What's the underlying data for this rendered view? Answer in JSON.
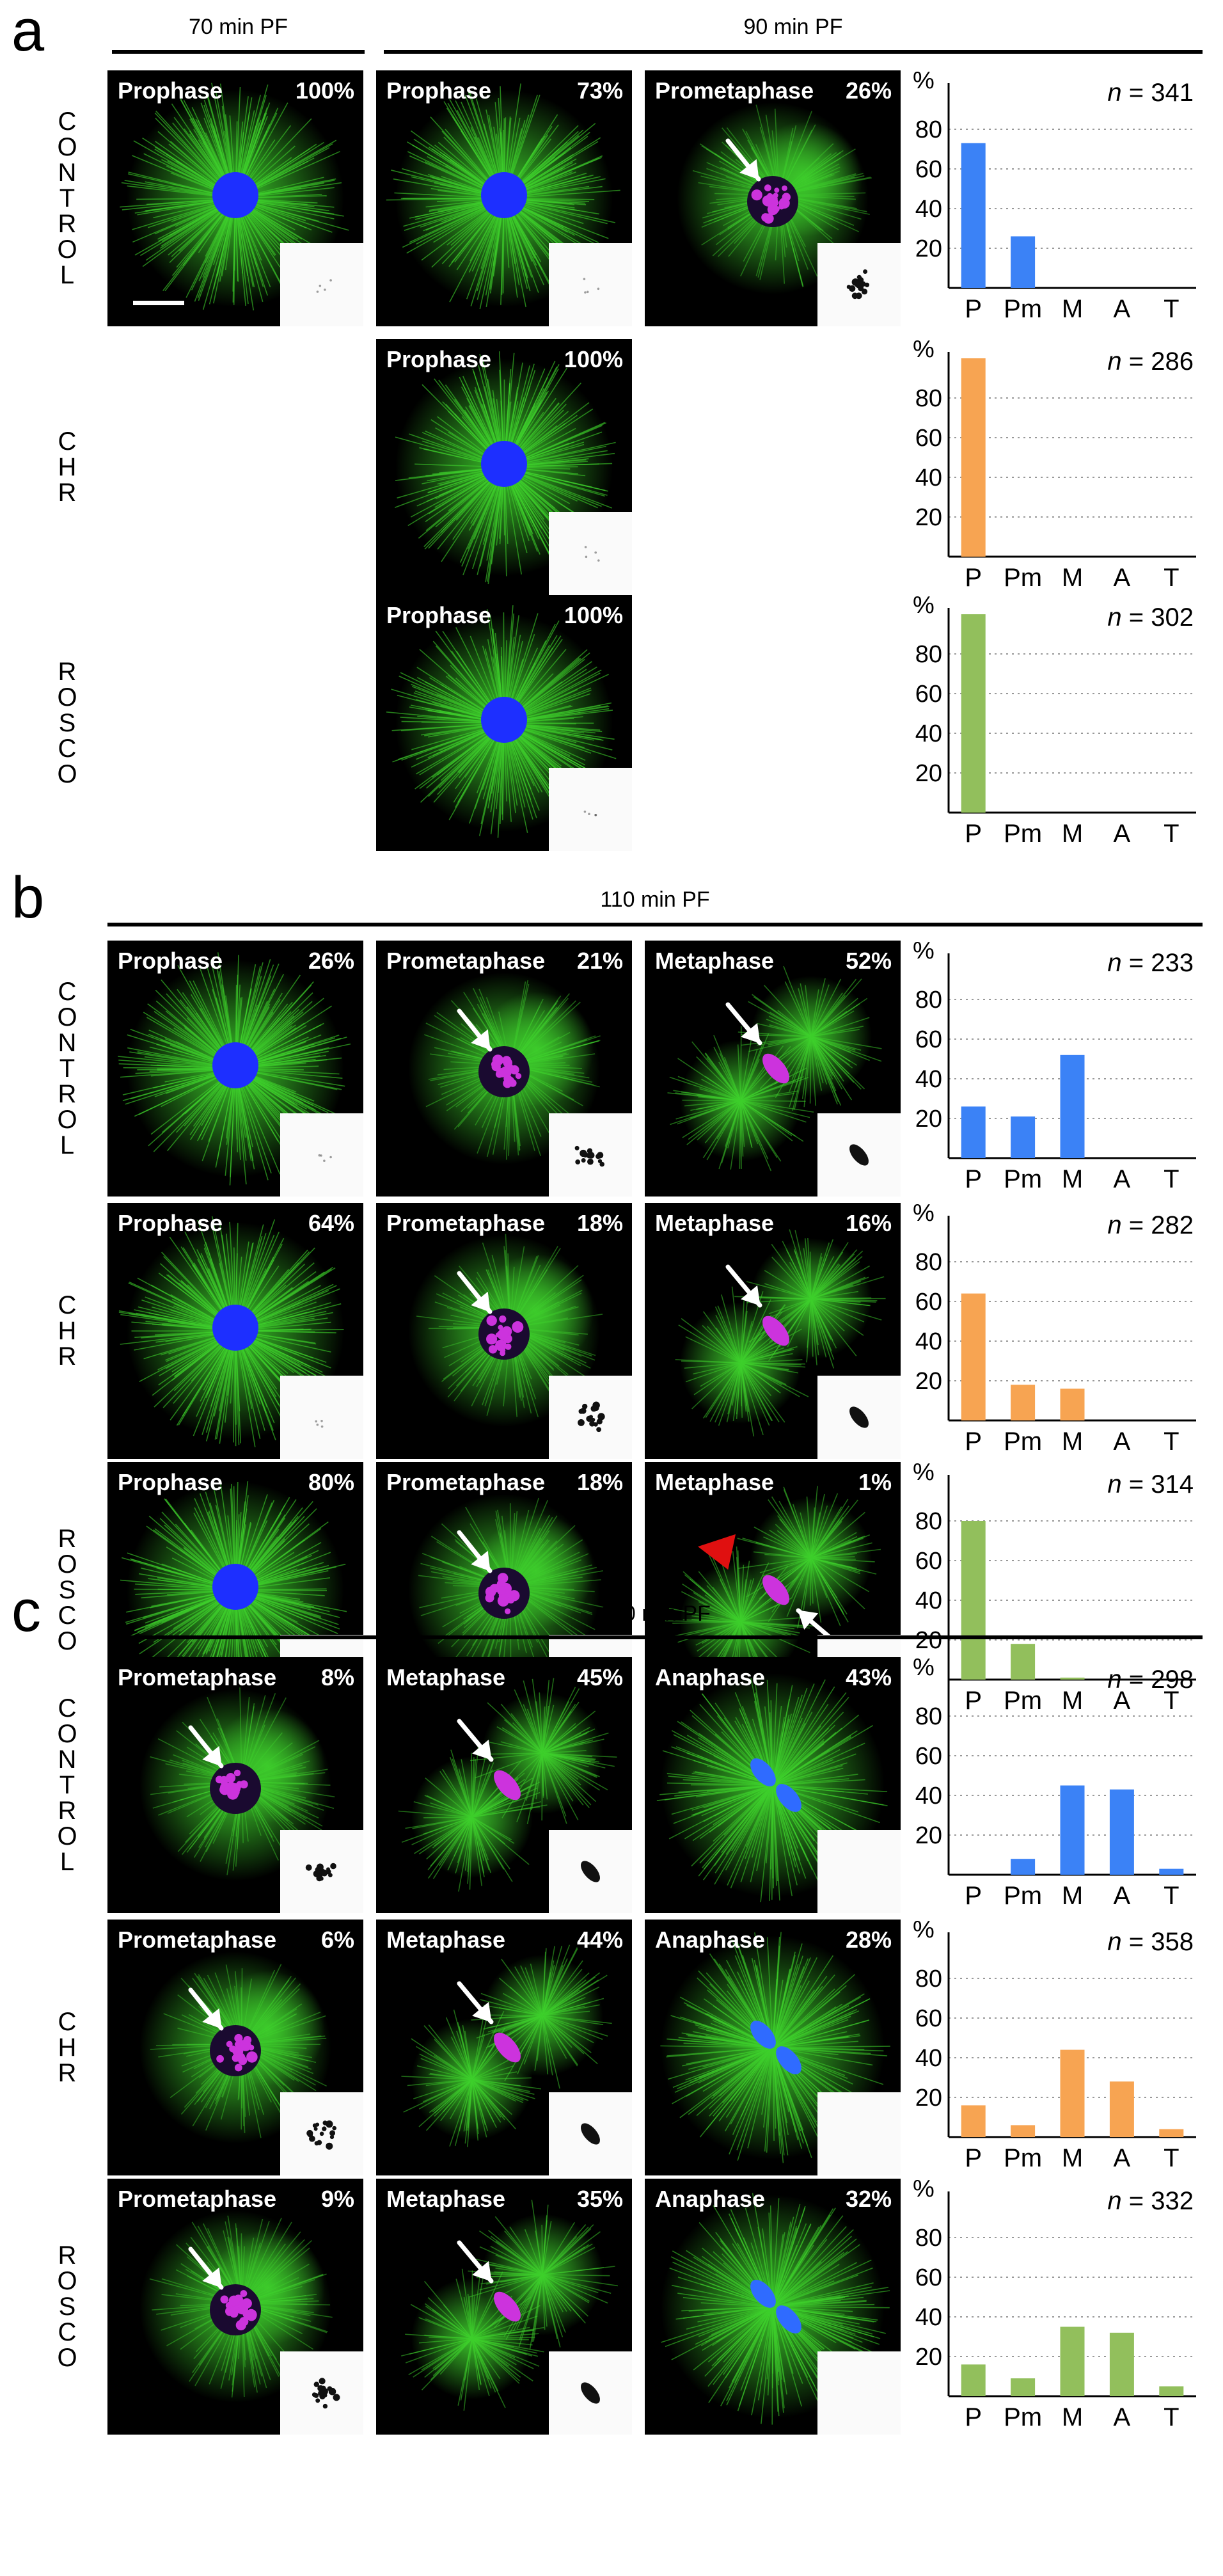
{
  "figure": {
    "panels": [
      {
        "letter": "a",
        "headers": [
          "70 min PF",
          "90 min PF"
        ],
        "rows": [
          {
            "label": "CONTROL",
            "tiles": [
              {
                "stage": "Prophase",
                "percent": "100%",
                "type": "prophase"
              },
              {
                "stage": "Prophase",
                "percent": "73%",
                "type": "prophase"
              },
              {
                "stage": "Prometaphase",
                "percent": "26%",
                "type": "prometa"
              }
            ],
            "chart_index": 0
          },
          {
            "label": "CHR",
            "tiles": [
              {
                "stage": "Prophase",
                "percent": "100%",
                "type": "prophase"
              }
            ],
            "chart_index": 1
          },
          {
            "label": "ROSCO",
            "tiles": [
              {
                "stage": "Prophase",
                "percent": "100%",
                "type": "prophase"
              }
            ],
            "chart_index": 2
          }
        ]
      },
      {
        "letter": "b",
        "headers": [
          "110 min PF"
        ],
        "rows": [
          {
            "label": "CONTROL",
            "tiles": [
              {
                "stage": "Prophase",
                "percent": "26%",
                "type": "prophase"
              },
              {
                "stage": "Prometaphase",
                "percent": "21%",
                "type": "prometa"
              },
              {
                "stage": "Metaphase",
                "percent": "52%",
                "type": "meta"
              }
            ],
            "chart_index": 3
          },
          {
            "label": "CHR",
            "tiles": [
              {
                "stage": "Prophase",
                "percent": "64%",
                "type": "prophase"
              },
              {
                "stage": "Prometaphase",
                "percent": "18%",
                "type": "prometa"
              },
              {
                "stage": "Metaphase",
                "percent": "16%",
                "type": "meta"
              }
            ],
            "chart_index": 4
          },
          {
            "label": "ROSCO",
            "tiles": [
              {
                "stage": "Prophase",
                "percent": "80%",
                "type": "prophase"
              },
              {
                "stage": "Prometaphase",
                "percent": "18%",
                "type": "prometa"
              },
              {
                "stage": "Metaphase",
                "percent": "1%",
                "type": "meta-red"
              }
            ],
            "chart_index": 5
          }
        ]
      },
      {
        "letter": "c",
        "headers": [
          "130 min PF"
        ],
        "rows": [
          {
            "label": "CONTROL",
            "tiles": [
              {
                "stage": "Prometaphase",
                "percent": "8%",
                "type": "prometa"
              },
              {
                "stage": "Metaphase",
                "percent": "45%",
                "type": "meta"
              },
              {
                "stage": "Anaphase",
                "percent": "43%",
                "type": "ana"
              }
            ],
            "chart_index": 6
          },
          {
            "label": "CHR",
            "tiles": [
              {
                "stage": "Prometaphase",
                "percent": "6%",
                "type": "prometa"
              },
              {
                "stage": "Metaphase",
                "percent": "44%",
                "type": "meta"
              },
              {
                "stage": "Anaphase",
                "percent": "28%",
                "type": "ana"
              }
            ],
            "chart_index": 7
          },
          {
            "label": "ROSCO",
            "tiles": [
              {
                "stage": "Prometaphase",
                "percent": "9%",
                "type": "prometa"
              },
              {
                "stage": "Metaphase",
                "percent": "35%",
                "type": "meta"
              },
              {
                "stage": "Anaphase",
                "percent": "32%",
                "type": "ana"
              }
            ],
            "chart_index": 8
          }
        ]
      }
    ]
  },
  "colors": {
    "control": "#3b82f6",
    "chr": "#f7a452",
    "rosco": "#92bf5c",
    "microtubules": "#3ecf2c",
    "dna_prophase": "#1d2fff",
    "dna_condensed": "#cc33dd",
    "dna_anaphase": "#2f6bff",
    "arrowhead": "#e01010"
  },
  "chart_data": [
    {
      "type": "bar",
      "group": "CONTROL",
      "time": "90 min PF",
      "categories": [
        "P",
        "Pm",
        "M",
        "A",
        "T"
      ],
      "values": [
        73,
        26,
        0,
        0,
        0
      ],
      "n_label": "n",
      "n_value": "= 341",
      "ylabel": "%",
      "ylim": [
        0,
        100
      ],
      "yticks": [
        20,
        40,
        60,
        80
      ],
      "grid": true
    },
    {
      "type": "bar",
      "group": "CHR",
      "time": "90 min PF",
      "categories": [
        "P",
        "Pm",
        "M",
        "A",
        "T"
      ],
      "values": [
        100,
        0,
        0,
        0,
        0
      ],
      "n_label": "n",
      "n_value": "= 286",
      "ylabel": "%",
      "ylim": [
        0,
        100
      ],
      "yticks": [
        20,
        40,
        60,
        80
      ],
      "grid": true
    },
    {
      "type": "bar",
      "group": "ROSCO",
      "time": "90 min PF",
      "categories": [
        "P",
        "Pm",
        "M",
        "A",
        "T"
      ],
      "values": [
        100,
        0,
        0,
        0,
        0
      ],
      "n_label": "n",
      "n_value": "= 302",
      "ylabel": "%",
      "ylim": [
        0,
        100
      ],
      "yticks": [
        20,
        40,
        60,
        80
      ],
      "grid": true
    },
    {
      "type": "bar",
      "group": "CONTROL",
      "time": "110 min PF",
      "categories": [
        "P",
        "Pm",
        "M",
        "A",
        "T"
      ],
      "values": [
        26,
        21,
        52,
        0,
        0
      ],
      "n_label": "n",
      "n_value": "= 233",
      "ylabel": "%",
      "ylim": [
        0,
        100
      ],
      "yticks": [
        20,
        40,
        60,
        80
      ],
      "grid": true
    },
    {
      "type": "bar",
      "group": "CHR",
      "time": "110 min PF",
      "categories": [
        "P",
        "Pm",
        "M",
        "A",
        "T"
      ],
      "values": [
        64,
        18,
        16,
        0,
        0
      ],
      "n_label": "n",
      "n_value": "= 282",
      "ylabel": "%",
      "ylim": [
        0,
        100
      ],
      "yticks": [
        20,
        40,
        60,
        80
      ],
      "grid": true
    },
    {
      "type": "bar",
      "group": "ROSCO",
      "time": "110 min PF",
      "categories": [
        "P",
        "Pm",
        "M",
        "A",
        "T"
      ],
      "values": [
        80,
        18,
        1,
        0,
        0
      ],
      "n_label": "n",
      "n_value": "= 314",
      "ylabel": "%",
      "ylim": [
        0,
        100
      ],
      "yticks": [
        20,
        40,
        60,
        80
      ],
      "grid": true
    },
    {
      "type": "bar",
      "group": "CONTROL",
      "time": "130 min PF",
      "categories": [
        "P",
        "Pm",
        "M",
        "A",
        "T"
      ],
      "values": [
        0,
        8,
        45,
        43,
        3
      ],
      "n_label": "n",
      "n_value": "= 298",
      "ylabel": "%",
      "ylim": [
        0,
        100
      ],
      "yticks": [
        20,
        40,
        60,
        80
      ],
      "grid": true
    },
    {
      "type": "bar",
      "group": "CHR",
      "time": "130 min PF",
      "categories": [
        "P",
        "Pm",
        "M",
        "A",
        "T"
      ],
      "values": [
        16,
        6,
        44,
        28,
        4
      ],
      "n_label": "n",
      "n_value": "= 358",
      "ylabel": "%",
      "ylim": [
        0,
        100
      ],
      "yticks": [
        20,
        40,
        60,
        80
      ],
      "grid": true
    },
    {
      "type": "bar",
      "group": "ROSCO",
      "time": "130 min PF",
      "categories": [
        "P",
        "Pm",
        "M",
        "A",
        "T"
      ],
      "values": [
        16,
        9,
        35,
        32,
        5
      ],
      "n_label": "n",
      "n_value": "= 332",
      "ylabel": "%",
      "ylim": [
        0,
        100
      ],
      "yticks": [
        20,
        40,
        60,
        80
      ],
      "grid": true
    }
  ]
}
